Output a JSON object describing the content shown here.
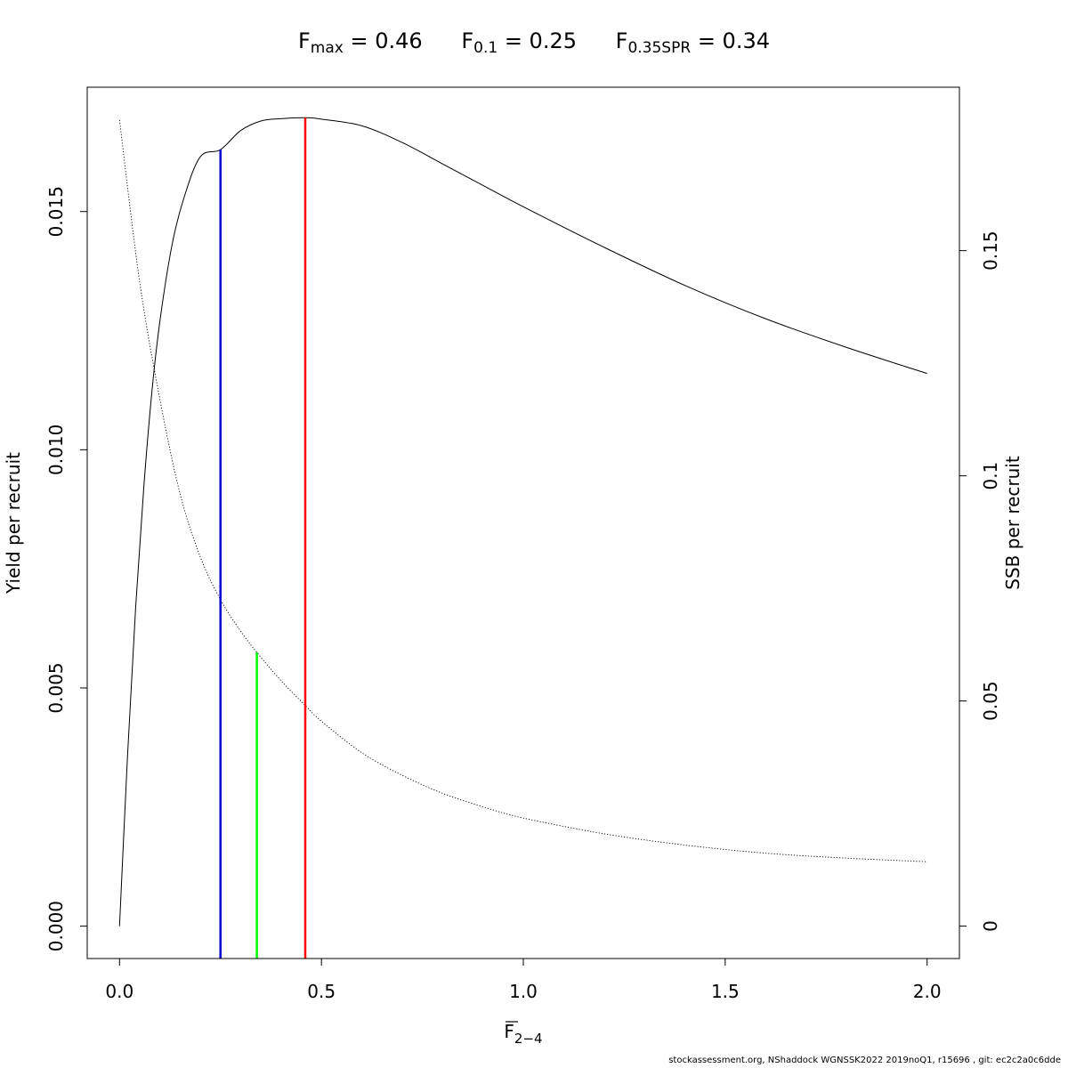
{
  "title": {
    "items": [
      {
        "sym": "F",
        "sub": "max",
        "eq": "= 0.46"
      },
      {
        "sym": "F",
        "sub": "0.1",
        "eq": "= 0.25"
      },
      {
        "sym": "F",
        "sub": "0.35SPR",
        "eq": "= 0.34"
      }
    ]
  },
  "footer": "stockassessment.org, NShaddock  WGNSSK2022  2019noQ1, r15696 , git: ec2c2a0c6dde",
  "chart_data": {
    "type": "line",
    "xlabel": {
      "main": "F",
      "sub": "2−4",
      "overline": true
    },
    "ylabel": "Yield per recruit",
    "y2label": "SSB per recruit",
    "xlim": [
      -0.08,
      2.08
    ],
    "ylim": [
      -0.00068,
      0.01761
    ],
    "y2lim": [
      -0.0072,
      0.1863
    ],
    "x_ticks": [
      0,
      0.5,
      1,
      1.5,
      2
    ],
    "x_tick_labels": [
      "0.0",
      "0.5",
      "1.0",
      "1.5",
      "2.0"
    ],
    "y_ticks": [
      0,
      0.005,
      0.01,
      0.015
    ],
    "y_tick_labels": [
      "0.000",
      "0.005",
      "0.010",
      "0.015"
    ],
    "y2_ticks": [
      0,
      0.05,
      0.1,
      0.15
    ],
    "y2_tick_labels": [
      "0",
      "0.05",
      "0.1",
      "0.15"
    ],
    "grid": false,
    "legend": "none",
    "series": [
      {
        "axis": "left",
        "style": "solid",
        "color": "#000000",
        "x": [
          0,
          0.02,
          0.04,
          0.06,
          0.08,
          0.1,
          0.13,
          0.16,
          0.2,
          0.25,
          0.3,
          0.35,
          0.4,
          0.46,
          0.5,
          0.6,
          0.7,
          0.8,
          0.9,
          1.0,
          1.2,
          1.4,
          1.6,
          1.8,
          2.0
        ],
        "y": [
          0,
          0.0036,
          0.0067,
          0.0092,
          0.0112,
          0.0127,
          0.0143,
          0.0153,
          0.01615,
          0.0163,
          0.0167,
          0.0169,
          0.01695,
          0.01697,
          0.01694,
          0.0168,
          0.01645,
          0.016,
          0.01555,
          0.0151,
          0.01425,
          0.01345,
          0.01275,
          0.01215,
          0.0116
        ]
      },
      {
        "axis": "right",
        "style": "dotted",
        "color": "#000000",
        "x": [
          0,
          0.05,
          0.1,
          0.15,
          0.2,
          0.25,
          0.3,
          0.34,
          0.4,
          0.46,
          0.5,
          0.6,
          0.7,
          0.8,
          0.9,
          1.0,
          1.2,
          1.4,
          1.6,
          1.8,
          2.0
        ],
        "y": [
          0.179,
          0.143,
          0.117,
          0.096,
          0.082,
          0.0725,
          0.0655,
          0.0608,
          0.0545,
          0.049,
          0.0455,
          0.0385,
          0.0335,
          0.0295,
          0.0265,
          0.024,
          0.0205,
          0.018,
          0.0162,
          0.0151,
          0.0143
        ]
      }
    ],
    "reference_lines": [
      {
        "name": "Fmax",
        "x": 0.46,
        "y_top": 0.01697,
        "axis": "left",
        "color": "#ff0000"
      },
      {
        "name": "F0.1",
        "x": 0.25,
        "y_top": 0.0163,
        "axis": "left",
        "color": "#0000cd"
      },
      {
        "name": "F0.35SPR",
        "x": 0.34,
        "y_top": 0.0608,
        "axis": "right",
        "color": "#00ff00"
      }
    ]
  }
}
